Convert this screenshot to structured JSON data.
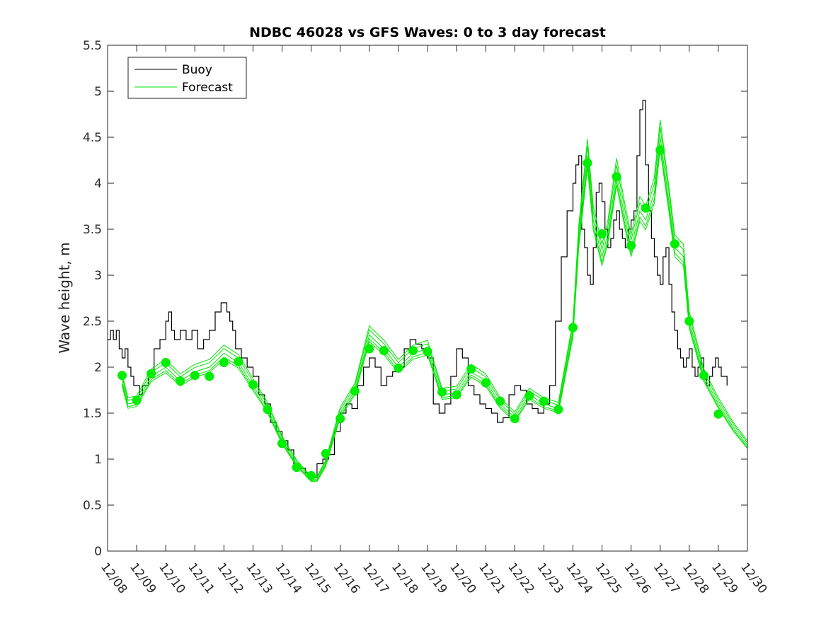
{
  "chart_data": {
    "type": "line",
    "title": "NDBC 46028 vs GFS Waves: 0 to 3 day forecast",
    "xlabel": "",
    "ylabel": "Wave height, m",
    "xlim": [
      0,
      22
    ],
    "ylim": [
      0,
      5.5
    ],
    "x_tick_labels": [
      "12/08",
      "12/09",
      "12/10",
      "12/11",
      "12/12",
      "12/13",
      "12/14",
      "12/15",
      "12/16",
      "12/17",
      "12/18",
      "12/19",
      "12/20",
      "12/21",
      "12/22",
      "12/23",
      "12/24",
      "12/25",
      "12/26",
      "12/27",
      "12/28",
      "12/29",
      "12/30"
    ],
    "y_ticks": [
      0,
      0.5,
      1,
      1.5,
      2,
      2.5,
      3,
      3.5,
      4,
      4.5,
      5,
      5.5
    ],
    "y_tick_labels": [
      "0",
      "0.5",
      "1",
      "1.5",
      "2",
      "2.5",
      "3",
      "3.5",
      "4",
      "4.5",
      "5",
      "5.5"
    ],
    "legend": {
      "position": "top-left",
      "entries": [
        {
          "label": "Buoy",
          "color": "#000000"
        },
        {
          "label": "Forecast",
          "color": "#00e600"
        }
      ]
    },
    "colors": {
      "buoy": "#000000",
      "forecast": "#00e600",
      "marker": "#00ee00"
    },
    "series": [
      {
        "name": "Buoy",
        "x": [
          0,
          0.1,
          0.2,
          0.3,
          0.4,
          0.5,
          0.6,
          0.7,
          0.8,
          0.9,
          1.0,
          1.1,
          1.2,
          1.4,
          1.6,
          1.8,
          2.0,
          2.1,
          2.2,
          2.3,
          2.5,
          2.7,
          2.9,
          3.1,
          3.3,
          3.5,
          3.7,
          3.9,
          4.1,
          4.2,
          4.3,
          4.4,
          4.6,
          4.8,
          5.0,
          5.2,
          5.4,
          5.6,
          5.8,
          6.0,
          6.2,
          6.4,
          6.6,
          6.8,
          7.0,
          7.2,
          7.4,
          7.6,
          7.8,
          8.0,
          8.2,
          8.4,
          8.6,
          8.8,
          9.0,
          9.2,
          9.4,
          9.6,
          9.8,
          10.0,
          10.2,
          10.4,
          10.6,
          10.8,
          11.0,
          11.2,
          11.4,
          11.6,
          11.8,
          12.0,
          12.2,
          12.4,
          12.6,
          12.8,
          13.0,
          13.2,
          13.4,
          13.6,
          13.8,
          14.0,
          14.2,
          14.4,
          14.6,
          14.8,
          15.0,
          15.2,
          15.4,
          15.6,
          15.8,
          16.0,
          16.1,
          16.2,
          16.3,
          16.4,
          16.5,
          16.6,
          16.7,
          16.8,
          16.9,
          17.0,
          17.1,
          17.2,
          17.3,
          17.4,
          17.5,
          17.6,
          17.7,
          17.8,
          17.9,
          18.0,
          18.1,
          18.2,
          18.3,
          18.4,
          18.5,
          18.6,
          18.7,
          18.8,
          18.9,
          19.0,
          19.1,
          19.2,
          19.3,
          19.4,
          19.5,
          19.6,
          19.7,
          19.8,
          19.9,
          20.0,
          20.1,
          20.2,
          20.3,
          20.4,
          20.5,
          20.6,
          20.7,
          20.8,
          20.9,
          21.0,
          21.1,
          21.2,
          21.3
        ],
        "values": [
          2.3,
          2.4,
          2.3,
          2.4,
          2.2,
          2.1,
          2.2,
          2.0,
          1.9,
          1.8,
          1.8,
          1.7,
          1.8,
          1.9,
          2.2,
          2.3,
          2.5,
          2.6,
          2.4,
          2.3,
          2.4,
          2.3,
          2.4,
          2.2,
          2.3,
          2.4,
          2.6,
          2.7,
          2.6,
          2.5,
          2.4,
          2.2,
          2.1,
          2.0,
          1.9,
          1.7,
          1.6,
          1.4,
          1.3,
          1.2,
          1.1,
          0.95,
          0.9,
          0.85,
          0.8,
          0.95,
          1.0,
          1.05,
          1.3,
          1.5,
          1.6,
          1.55,
          1.8,
          2.0,
          2.1,
          2.0,
          1.8,
          1.9,
          1.95,
          2.0,
          2.2,
          2.3,
          2.25,
          2.2,
          2.1,
          1.6,
          1.5,
          1.6,
          1.9,
          2.2,
          2.1,
          1.8,
          1.7,
          1.6,
          1.55,
          1.5,
          1.4,
          1.45,
          1.7,
          1.8,
          1.75,
          1.6,
          1.55,
          1.5,
          1.6,
          1.8,
          2.5,
          3.2,
          3.7,
          4.0,
          4.2,
          4.3,
          3.5,
          3.3,
          3.0,
          2.9,
          3.3,
          3.9,
          4.0,
          3.8,
          3.5,
          3.3,
          3.4,
          3.6,
          3.7,
          3.5,
          3.4,
          3.3,
          3.5,
          3.6,
          3.7,
          4.3,
          4.8,
          4.9,
          4.2,
          3.7,
          3.4,
          3.2,
          3.0,
          2.9,
          3.2,
          3.3,
          2.9,
          2.6,
          2.4,
          2.2,
          2.1,
          2.0,
          2.1,
          2.2,
          2.0,
          1.9,
          2.0,
          2.1,
          1.9,
          1.8,
          1.9,
          2.0,
          2.1,
          2.0,
          1.9,
          1.9,
          1.8
        ]
      },
      {
        "name": "Forecast",
        "x": [
          0.5,
          0.7,
          1.0,
          1.5,
          2.0,
          2.5,
          3.0,
          3.5,
          4.0,
          4.5,
          5.0,
          5.5,
          6.0,
          6.5,
          7.0,
          7.2,
          7.5,
          8.0,
          8.5,
          9.0,
          9.5,
          10.0,
          10.5,
          11.0,
          11.5,
          12.0,
          12.5,
          13.0,
          13.5,
          14.0,
          14.5,
          15.0,
          15.5,
          16.0,
          16.2,
          16.5,
          16.7,
          17.0,
          17.2,
          17.5,
          17.8,
          18.0,
          18.3,
          18.5,
          18.8,
          19.0,
          19.3,
          19.5,
          19.8,
          20.0,
          20.5,
          21.0,
          21.5,
          22.0
        ],
        "values": [
          1.85,
          1.6,
          1.62,
          1.9,
          2.0,
          1.85,
          1.95,
          2.0,
          2.15,
          2.05,
          1.8,
          1.55,
          1.2,
          0.95,
          0.78,
          0.78,
          0.95,
          1.5,
          1.75,
          2.35,
          2.2,
          2.0,
          2.15,
          2.2,
          1.7,
          1.72,
          1.95,
          1.85,
          1.6,
          1.45,
          1.7,
          1.6,
          1.55,
          2.4,
          3.4,
          4.3,
          3.6,
          3.2,
          3.45,
          4.1,
          3.6,
          3.3,
          3.7,
          3.6,
          3.9,
          4.5,
          3.8,
          3.3,
          3.2,
          2.5,
          1.9,
          1.6,
          1.35,
          1.15
        ]
      },
      {
        "name": "Forecast markers",
        "x": [
          0.5,
          1,
          1.5,
          2,
          2.5,
          3,
          3.5,
          4,
          4.5,
          5,
          5.5,
          6,
          6.5,
          7,
          7.5,
          8,
          8.5,
          9,
          9.5,
          10,
          10.5,
          11,
          11.5,
          12,
          12.5,
          13,
          13.5,
          14,
          14.5,
          15,
          15.5,
          16,
          16.5,
          17,
          17.5,
          18,
          18.5,
          19,
          19.5,
          20,
          20.5,
          21
        ],
        "values": [
          1.91,
          1.64,
          1.93,
          2.05,
          1.85,
          1.91,
          1.9,
          2.05,
          2.06,
          1.81,
          1.54,
          1.17,
          0.91,
          0.82,
          1.06,
          1.44,
          1.74,
          2.2,
          2.18,
          1.99,
          2.18,
          2.17,
          1.73,
          1.7,
          1.98,
          1.83,
          1.63,
          1.44,
          1.69,
          1.63,
          1.54,
          2.43,
          4.22,
          3.45,
          4.07,
          3.32,
          3.73,
          4.36,
          3.34,
          2.5,
          1.91,
          1.49
        ]
      }
    ]
  }
}
